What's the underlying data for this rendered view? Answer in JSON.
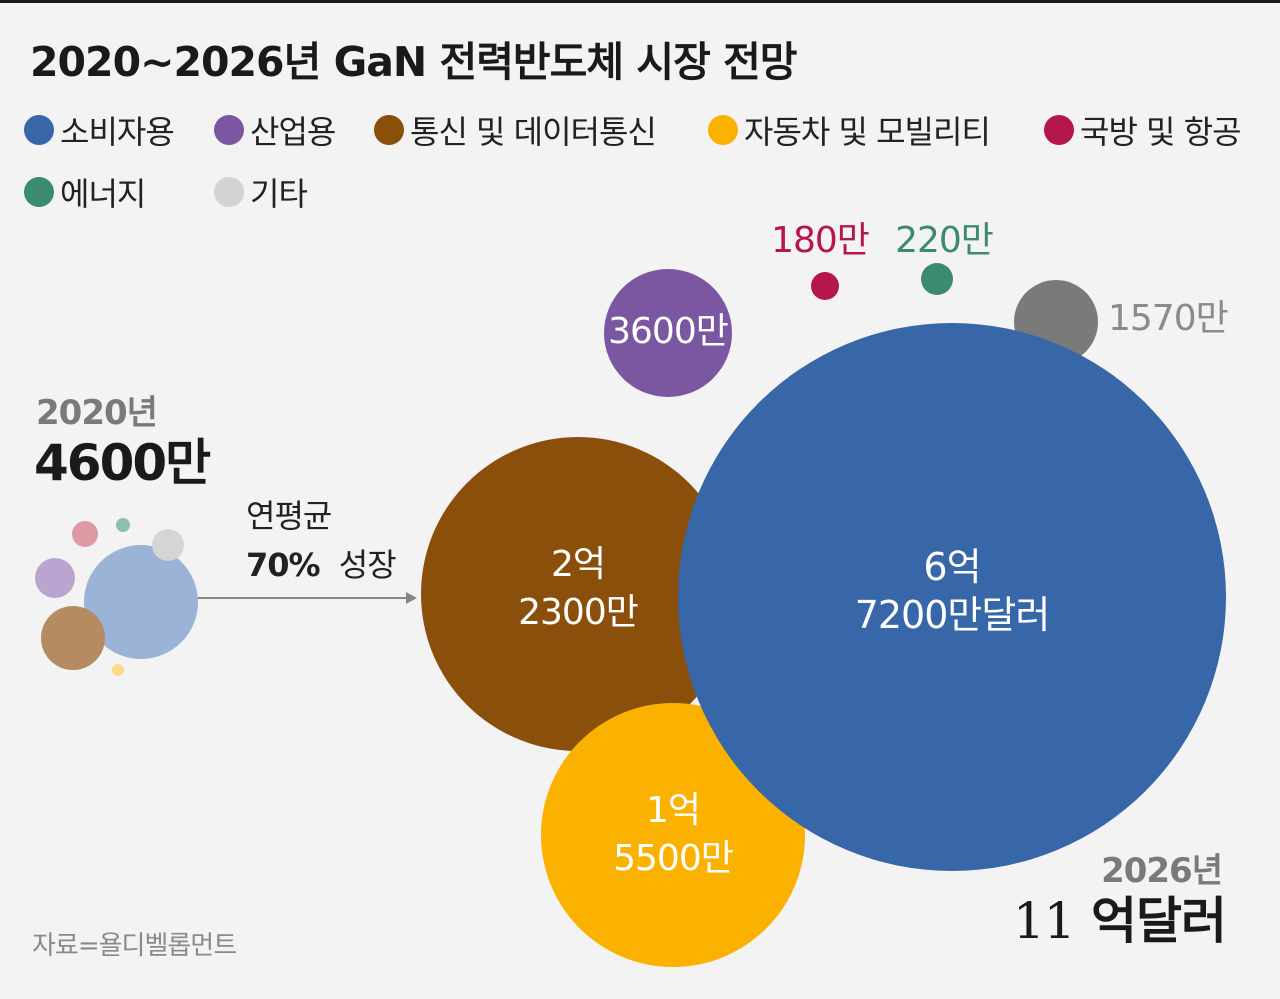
{
  "header": {
    "title": "2020~2026년 GaN 전력반도체 시장 전망"
  },
  "legend": [
    {
      "label": "소비자용",
      "color": "#3767a8"
    },
    {
      "label": "산업용",
      "color": "#7b56a1"
    },
    {
      "label": "통신 및 데이터통신",
      "color": "#8a4f0a"
    },
    {
      "label": "자동차 및 모빌리티",
      "color": "#fbb100"
    },
    {
      "label": "국방 및 항공",
      "color": "#b5174b"
    },
    {
      "label": "에너지",
      "color": "#3b8a72"
    },
    {
      "label": "기타",
      "color": "#d3d3d3"
    }
  ],
  "left_summary": {
    "year": "2020년",
    "total": "4600만"
  },
  "growth": {
    "line1": "연평균",
    "rate": "70%",
    "line2": "성장"
  },
  "right_summary": {
    "year": "2026년",
    "total_number": "11",
    "total_unit": "억달러"
  },
  "source": "자료=욜디벨롭먼트",
  "chart_data": [
    {
      "type": "bubble",
      "title": "2020년",
      "total": "4600만",
      "series": [
        {
          "name": "소비자용",
          "color": "#9bb3d6"
        },
        {
          "name": "산업용",
          "color": "#bba4cf"
        },
        {
          "name": "통신 및 데이터통신",
          "color": "#b58c62"
        },
        {
          "name": "자동차 및 모빌리티",
          "color": "#fcd88a"
        },
        {
          "name": "국방 및 항공",
          "color": "#de9aa3"
        },
        {
          "name": "에너지",
          "color": "#8fbfb0"
        },
        {
          "name": "기타",
          "color": "#d5d5d5"
        }
      ]
    },
    {
      "type": "bubble",
      "title": "2026년",
      "total": "11억달러",
      "unit": "달러",
      "series": [
        {
          "name": "소비자용",
          "value": 672000000,
          "label_lines": [
            "6억",
            "7200만달러"
          ],
          "color": "#3767a8",
          "label_color": "#ffffff"
        },
        {
          "name": "통신 및 데이터통신",
          "value": 223000000,
          "label_lines": [
            "2억",
            "2300만"
          ],
          "color": "#8a4f0a",
          "label_color": "#ffffff"
        },
        {
          "name": "자동차 및 모빌리티",
          "value": 155000000,
          "label_lines": [
            "1억",
            "5500만"
          ],
          "color": "#fbb100",
          "label_color": "#ffffff"
        },
        {
          "name": "산업용",
          "value": 36000000,
          "label_lines": [
            "3600만"
          ],
          "color": "#7b56a1",
          "label_color": "#ffffff"
        },
        {
          "name": "기타",
          "value": 15700000,
          "label_lines": [
            "1570만"
          ],
          "color": "#7a7a7a",
          "label_color": "#8a8a8a"
        },
        {
          "name": "에너지",
          "value": 2200000,
          "label_lines": [
            "220만"
          ],
          "color": "#3b8a72",
          "label_color": "#3b8a72"
        },
        {
          "name": "국방 및 항공",
          "value": 1800000,
          "label_lines": [
            "180만"
          ],
          "color": "#b5174b",
          "label_color": "#b5174b"
        }
      ]
    }
  ]
}
